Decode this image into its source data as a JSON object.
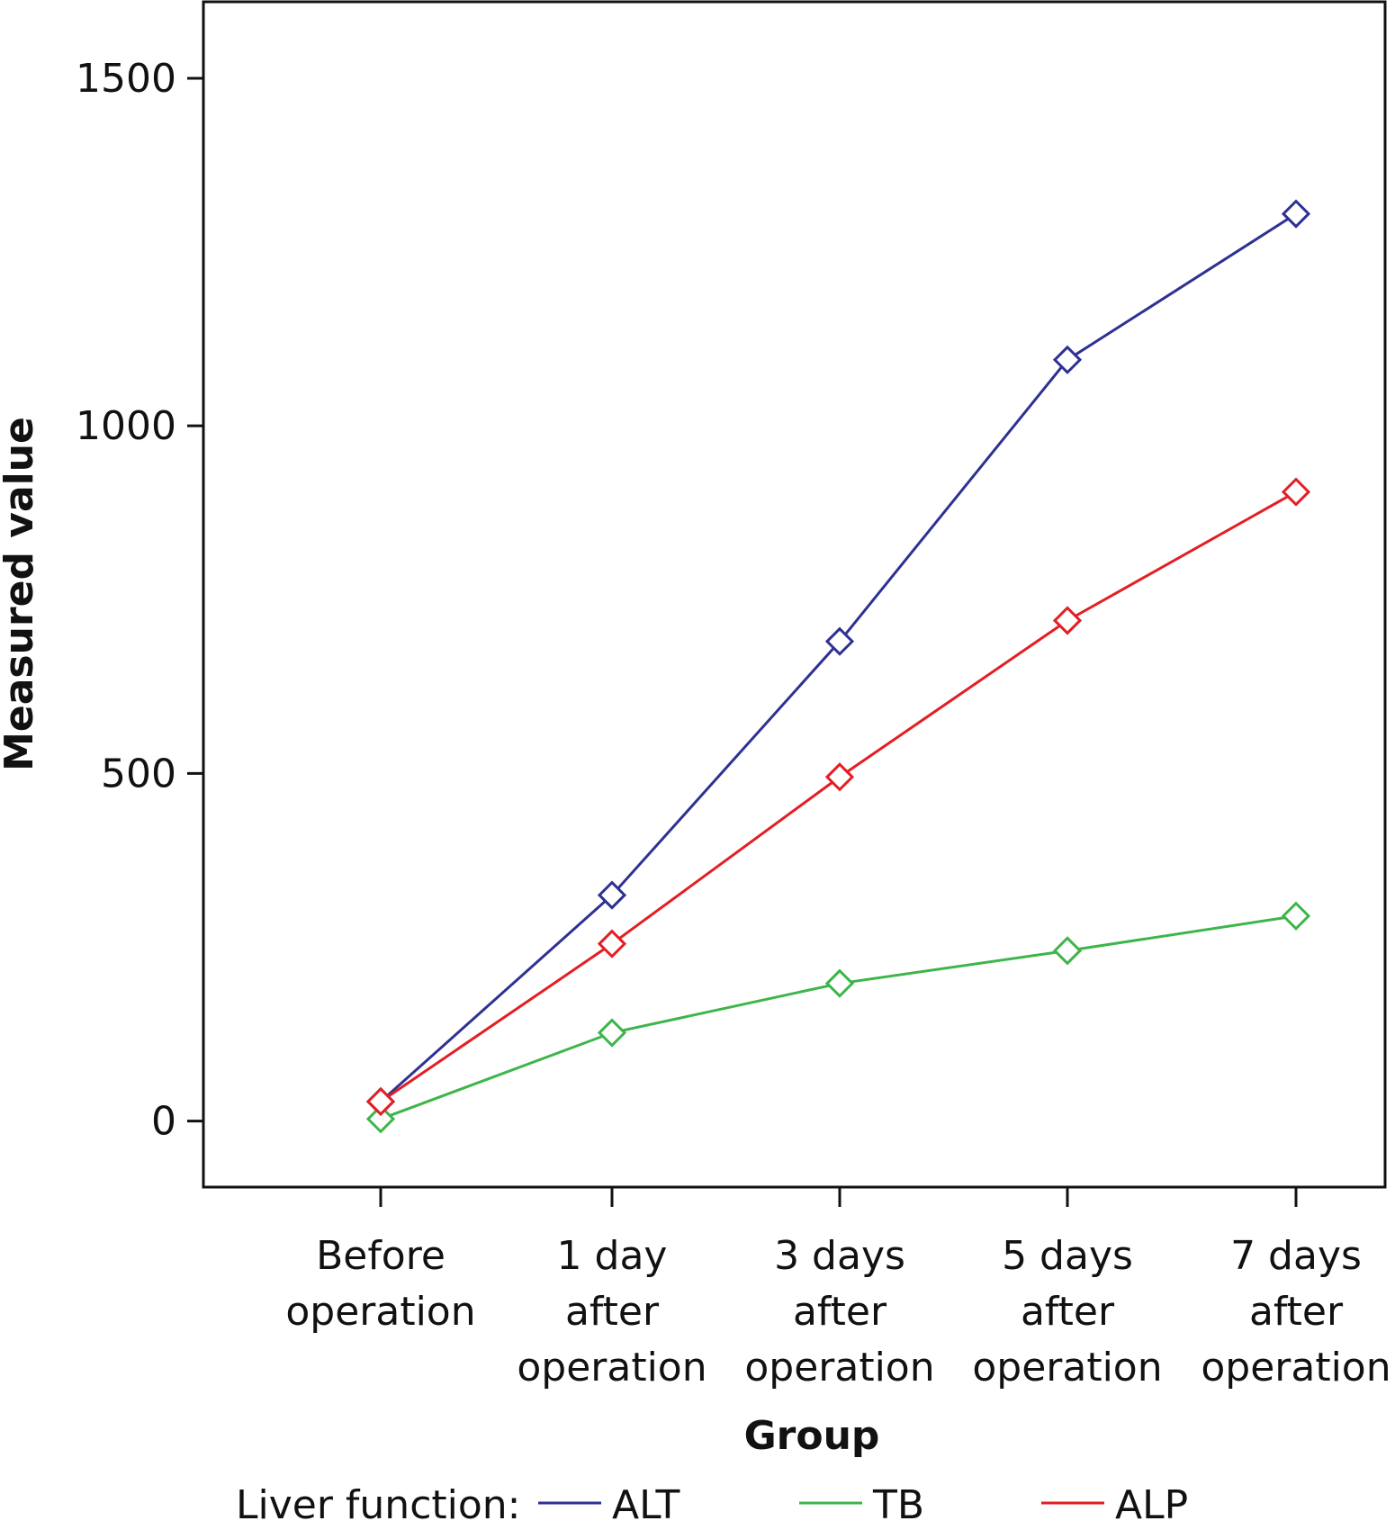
{
  "chart_data": {
    "type": "line",
    "title": "",
    "xlabel": "Group",
    "ylabel": "Measured value",
    "categories": [
      [
        "Before",
        "operation"
      ],
      [
        "1 day",
        "after",
        "operation"
      ],
      [
        "3 days",
        "after",
        "operation"
      ],
      [
        "5 days",
        "after",
        "operation"
      ],
      [
        "7 days",
        "after",
        "operation"
      ]
    ],
    "yticks": [
      0,
      500,
      1000,
      1500
    ],
    "ylim": [
      -95,
      1610
    ],
    "grid": false,
    "legend_title": "Liver function:",
    "legend_position": "bottom",
    "marker": "open-diamond",
    "series": [
      {
        "name": "ALT",
        "color": "#2e3192",
        "values": [
          28,
          325,
          690,
          1095,
          1305
        ]
      },
      {
        "name": "TB",
        "color": "#3db54a",
        "values": [
          3,
          127,
          198,
          245,
          295
        ]
      },
      {
        "name": "ALP",
        "color": "#e31e24",
        "values": [
          28,
          255,
          495,
          720,
          905
        ]
      }
    ]
  }
}
